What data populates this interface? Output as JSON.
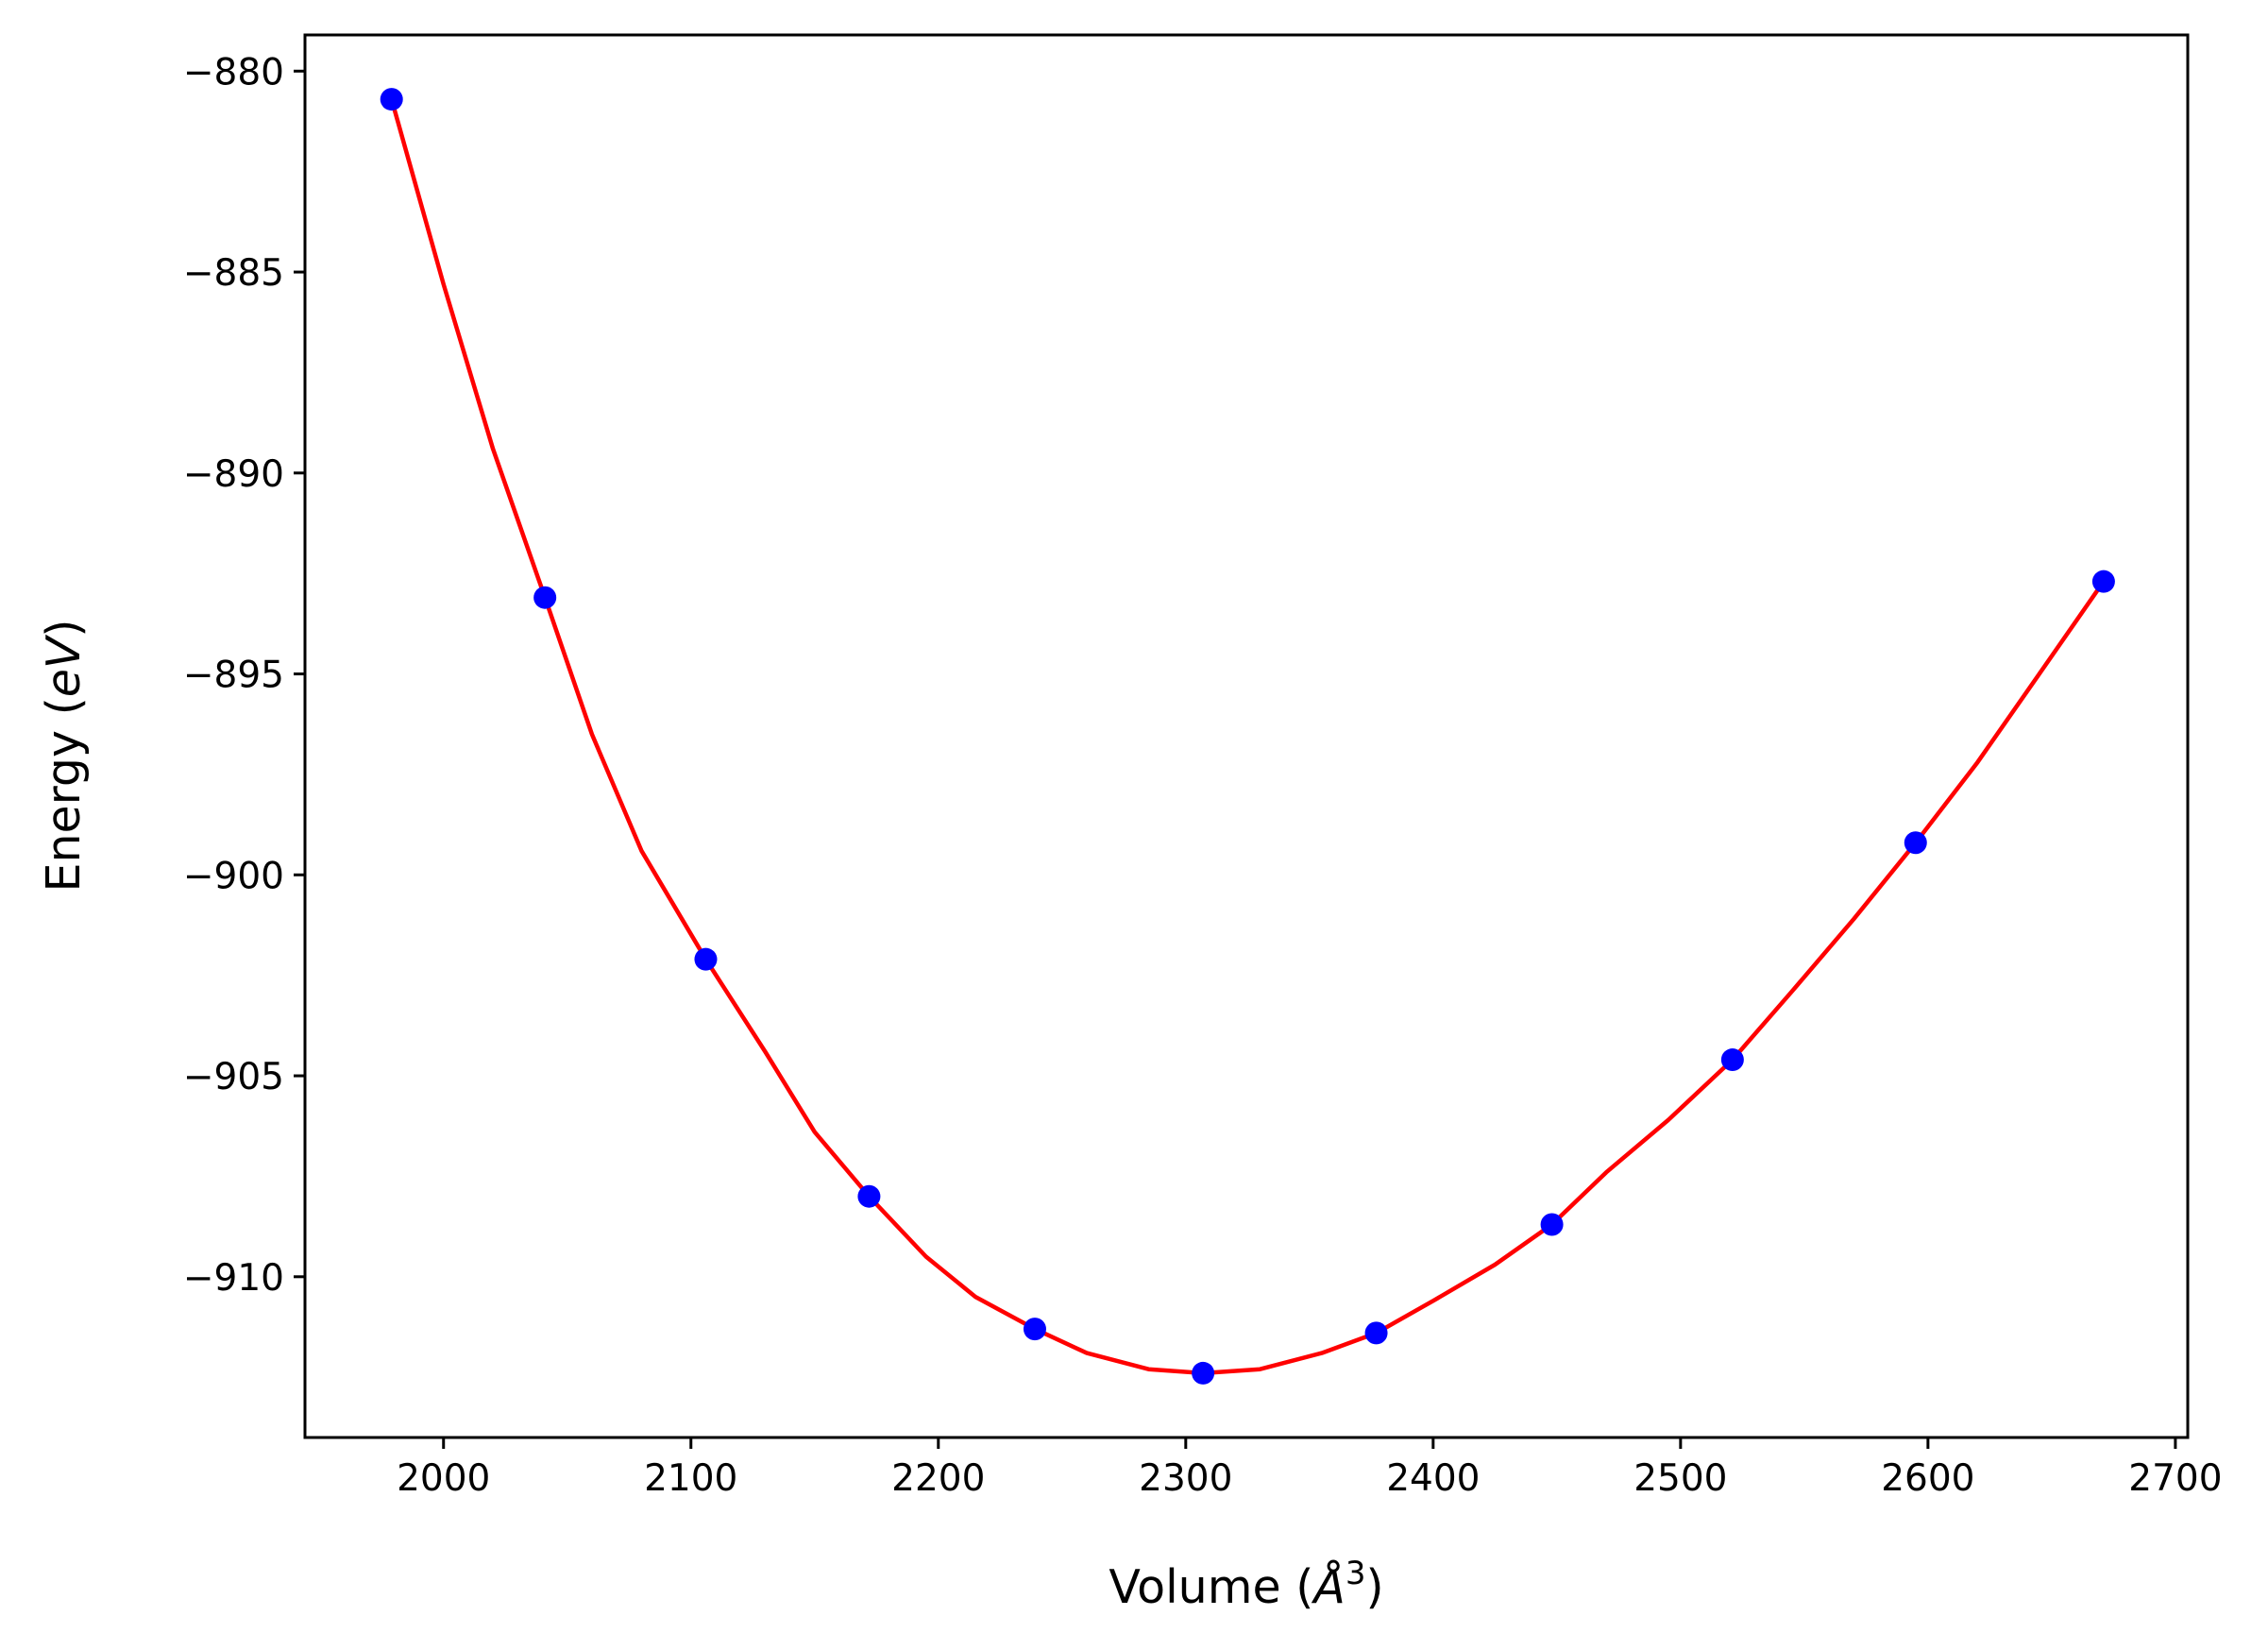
{
  "chart_data": {
    "type": "scatter",
    "title": "",
    "xlabel_main": "Volume (",
    "xlabel_symbol": "Å",
    "xlabel_sup": "3",
    "xlabel_close": ")",
    "ylabel_main": "Energy (",
    "ylabel_italic": "eV",
    "ylabel_close": ")",
    "xlim": [
      1944,
      2705
    ],
    "ylim": [
      -914,
      -879.1
    ],
    "x_ticks": [
      2000,
      2100,
      2200,
      2300,
      2400,
      2500,
      2600,
      2700
    ],
    "x_tick_labels": [
      "2000",
      "2100",
      "2200",
      "2300",
      "2400",
      "2500",
      "2600",
      "2700"
    ],
    "y_ticks": [
      -880,
      -885,
      -890,
      -895,
      -900,
      -905,
      -910
    ],
    "y_tick_labels": [
      "−880",
      "−885",
      "−890",
      "−895",
      "−900",
      "−905",
      "−910"
    ],
    "grid": false,
    "legend": "none",
    "series": [
      {
        "kind": "points",
        "color": "#0000ff",
        "x": [
          1979,
          2041,
          2106,
          2172,
          2239,
          2307,
          2377,
          2448,
          2521,
          2595,
          2671
        ],
        "y": [
          -880.7,
          -893.1,
          -902.1,
          -908.0,
          -911.3,
          -912.4,
          -911.4,
          -908.7,
          -904.6,
          -899.2,
          -892.7
        ]
      },
      {
        "kind": "fit-curve",
        "color": "#ff0000",
        "x": [
          1979,
          2000,
          2020,
          2041,
          2060,
          2080,
          2106,
          2130,
          2150,
          2172,
          2195,
          2215,
          2239,
          2260,
          2285,
          2307,
          2330,
          2355,
          2377,
          2400,
          2425,
          2448,
          2470,
          2495,
          2521,
          2545,
          2570,
          2595,
          2620,
          2645,
          2671
        ],
        "y": [
          -880.7,
          -885.3,
          -889.4,
          -893.1,
          -896.5,
          -899.4,
          -902.1,
          -904.4,
          -906.4,
          -908.0,
          -909.5,
          -910.5,
          -911.3,
          -911.9,
          -912.3,
          -912.4,
          -912.3,
          -911.9,
          -911.4,
          -910.6,
          -909.7,
          -908.7,
          -907.4,
          -906.1,
          -904.6,
          -902.9,
          -901.1,
          -899.2,
          -897.2,
          -895.0,
          -892.7
        ]
      }
    ]
  }
}
